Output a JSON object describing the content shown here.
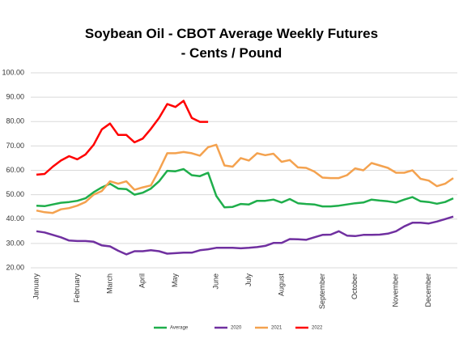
{
  "chart_data": {
    "type": "line",
    "title": "Soybean Oil - CBOT Average Weekly Futures - Cents / Pound",
    "categories": [
      "January",
      null,
      null,
      null,
      null,
      "February",
      null,
      null,
      null,
      "March",
      null,
      null,
      null,
      "April",
      null,
      null,
      null,
      "May",
      null,
      null,
      null,
      null,
      "June",
      null,
      null,
      null,
      "July",
      null,
      null,
      null,
      "August",
      null,
      null,
      null,
      null,
      "September",
      null,
      null,
      null,
      "October",
      null,
      null,
      null,
      null,
      "November",
      null,
      null,
      null,
      "December",
      null,
      null,
      null
    ],
    "ylim": [
      20,
      100
    ],
    "yticks": [
      {
        "value": 20,
        "label": "20.00"
      },
      {
        "value": 30,
        "label": "30.00"
      },
      {
        "value": 40,
        "label": "40.00"
      },
      {
        "value": 50,
        "label": "50.00"
      },
      {
        "value": 60,
        "label": "60.00"
      },
      {
        "value": 70,
        "label": "70.00"
      },
      {
        "value": 80,
        "label": "80.00"
      },
      {
        "value": 90,
        "label": "90.00"
      },
      {
        "value": 100,
        "label": "100.00"
      }
    ],
    "grid": true,
    "legend": "bottom",
    "series": [
      {
        "name": "Average",
        "color": "#1fae4b",
        "values": [
          45.5,
          45.3,
          46,
          46.7,
          47,
          47.5,
          48.5,
          51,
          53,
          54.5,
          52.5,
          52.3,
          50,
          50.8,
          52.5,
          55.5,
          59.8,
          59.6,
          60.5,
          58,
          57.6,
          59,
          49.5,
          44.8,
          45,
          46.2,
          46,
          47.5,
          47.5,
          48,
          46.8,
          48.2,
          46.5,
          46.2,
          46,
          45.2,
          45.2,
          45.5,
          46,
          46.5,
          46.8,
          48,
          47.6,
          47.3,
          46.8,
          48,
          49,
          47.3,
          47,
          46.3,
          47,
          48.5
        ]
      },
      {
        "name": "2020",
        "color": "#7030a0",
        "values": [
          35,
          34.5,
          33.5,
          32.5,
          31.2,
          31,
          31,
          30.7,
          29.2,
          28.8,
          27,
          25.5,
          26.8,
          26.8,
          27.2,
          26.8,
          25.8,
          26,
          26.2,
          26.2,
          27.2,
          27.6,
          28.2,
          28.2,
          28.2,
          28,
          28.2,
          28.5,
          29,
          30.2,
          30.2,
          31.8,
          31.7,
          31.5,
          32.5,
          33.5,
          33.6,
          35,
          33.2,
          33,
          33.5,
          33.5,
          33.6,
          34,
          35,
          37,
          38.5,
          38.5,
          38.2,
          39,
          40,
          41
        ]
      },
      {
        "name": "2021",
        "color": "#f4a24f",
        "values": [
          43.5,
          42.8,
          42.5,
          44,
          44.5,
          45.5,
          47,
          50,
          51.5,
          55.5,
          54.5,
          55.5,
          52,
          53,
          53.8,
          60,
          67,
          67,
          67.5,
          67,
          66,
          69.5,
          70.5,
          62,
          61.5,
          65,
          64,
          67,
          66.2,
          66.8,
          63.5,
          64.2,
          61.2,
          61,
          59.5,
          57,
          56.8,
          56.8,
          58,
          60.8,
          60,
          63,
          62,
          61,
          59,
          59,
          60,
          56.5,
          55.8,
          53.5,
          54.5,
          56.8
        ]
      },
      {
        "name": "2022",
        "color": "#ff0000",
        "values": [
          58.2,
          58.5,
          61.5,
          64,
          65.8,
          64.5,
          66.5,
          70.5,
          76.8,
          79.2,
          74.5,
          74.5,
          71.5,
          73,
          77,
          81.5,
          87.2,
          86,
          88.5,
          81.5,
          79.9,
          79.9,
          null,
          null,
          null,
          null,
          null,
          null,
          null,
          null,
          null,
          null,
          null,
          null,
          null,
          null,
          null,
          null,
          null,
          null,
          null,
          null,
          null,
          null,
          null,
          null,
          null,
          null,
          null,
          null,
          null,
          null
        ]
      }
    ]
  }
}
